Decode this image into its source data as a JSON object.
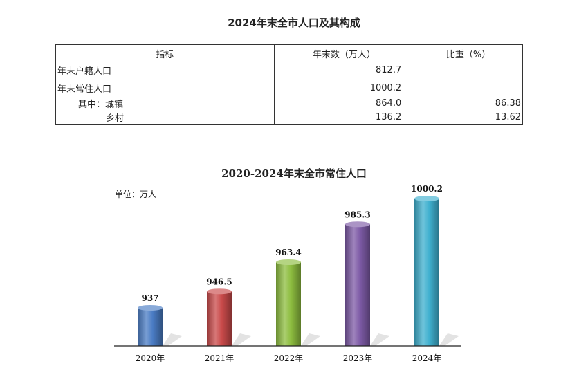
{
  "table": {
    "title": "2024年末全市人口及其构成",
    "headers": [
      "指标",
      "年末数（万人）",
      "比重（%）"
    ],
    "rows": [
      {
        "label": "年末户籍人口",
        "value": "812.7",
        "share": ""
      },
      {
        "label": "年末常住人口",
        "value": "1000.2",
        "share": ""
      },
      {
        "label": "其中：城镇",
        "value": "864.0",
        "share": "86.38"
      },
      {
        "label": "乡村",
        "value": "136.2",
        "share": "13.62"
      }
    ]
  },
  "chart_data": {
    "type": "bar",
    "title": "2020-2024年末全市常住人口",
    "unit_label": "单位：万人",
    "categories": [
      "2020年",
      "2021年",
      "2022年",
      "2023年",
      "2024年"
    ],
    "values": [
      937,
      946.5,
      963.4,
      985.3,
      1000.2
    ],
    "value_labels": [
      "937",
      "946.5",
      "963.4",
      "985.3",
      "1000.2"
    ],
    "colors": [
      "#4a7cc4",
      "#c94a4a",
      "#8dbd3f",
      "#7d5aa6",
      "#3fb0cf"
    ],
    "xlabel": "",
    "ylabel": ""
  }
}
